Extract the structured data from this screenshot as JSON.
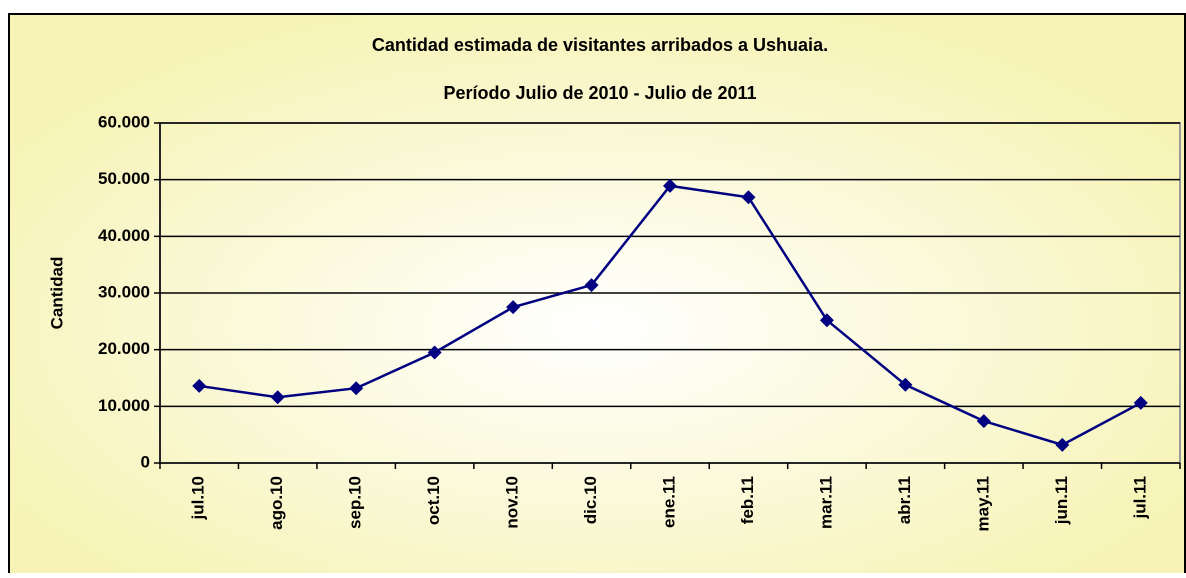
{
  "chart_data": {
    "type": "line",
    "title": "Cantidad estimada de visitantes arribados a Ushuaia.",
    "subtitle": "Período Julio de 2010 - Julio de 2011",
    "y_label": "Cantidad",
    "categories": [
      "jul.10",
      "ago.10",
      "sep.10",
      "oct.10",
      "nov.10",
      "dic.10",
      "ene.11",
      "feb.11",
      "mar.11",
      "abr.11",
      "may.11",
      "jun.11",
      "jul.11"
    ],
    "series": [
      {
        "name": "Cantidad",
        "color": "#000080",
        "values": [
          13600,
          11600,
          13200,
          19500,
          27500,
          31400,
          48900,
          46900,
          25200,
          13800,
          7400,
          3200,
          10600
        ]
      }
    ],
    "ylim": [
      0,
      60000
    ],
    "yticks": [
      0,
      {
        "value": 10000,
        "label": "10.000"
      },
      {
        "value": 20000,
        "label": "20.000"
      },
      {
        "value": 30000,
        "label": "30.000"
      },
      {
        "value": 40000,
        "label": "40.000"
      },
      {
        "value": 50000,
        "label": "50.000"
      },
      {
        "value": 60000,
        "label": "60.000"
      }
    ],
    "grid": true
  }
}
